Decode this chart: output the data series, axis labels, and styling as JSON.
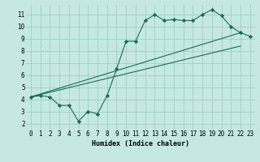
{
  "xlabel": "Humidex (Indice chaleur)",
  "bg_color": "#c5e8e3",
  "line_color": "#1a6b5a",
  "grid_color": "#9ecfc8",
  "xlim": [
    -0.5,
    23.5
  ],
  "ylim": [
    1.5,
    11.8
  ],
  "yticks": [
    2,
    3,
    4,
    5,
    6,
    7,
    8,
    9,
    10,
    11
  ],
  "xticks": [
    0,
    1,
    2,
    3,
    4,
    5,
    6,
    7,
    8,
    9,
    10,
    11,
    12,
    13,
    14,
    15,
    16,
    17,
    18,
    19,
    20,
    21,
    22,
    23
  ],
  "line1_x": [
    0,
    1,
    2,
    3,
    4,
    5,
    6,
    7,
    8,
    9,
    10,
    11,
    12,
    13,
    14,
    15,
    16,
    17,
    18,
    19,
    20,
    21,
    22,
    23
  ],
  "line1_y": [
    4.2,
    4.3,
    4.2,
    3.5,
    3.5,
    2.2,
    3.0,
    2.8,
    4.3,
    6.5,
    8.8,
    8.8,
    10.5,
    11.0,
    10.5,
    10.6,
    10.5,
    10.5,
    11.0,
    11.4,
    10.9,
    10.0,
    9.5,
    9.2
  ],
  "line2_x": [
    0,
    22
  ],
  "line2_y": [
    4.2,
    9.5
  ],
  "line3_x": [
    0,
    22
  ],
  "line3_y": [
    4.2,
    8.4
  ],
  "marker": "D",
  "markersize": 2.2,
  "xlabel_fontsize": 6,
  "tick_fontsize": 5.5
}
